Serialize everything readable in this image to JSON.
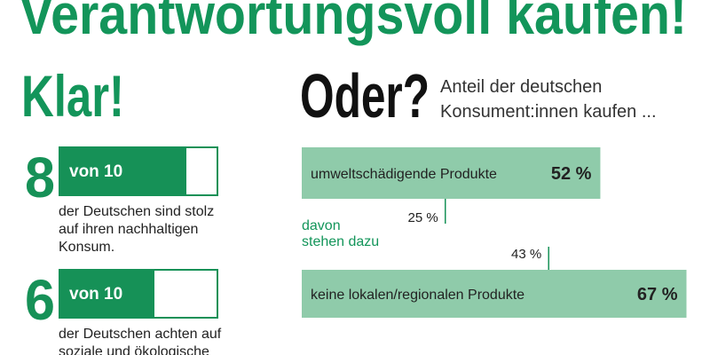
{
  "title": "Verantwortungsvoll kaufen!",
  "left": {
    "heading": "Klar!",
    "max": 10,
    "max_label": "von 10",
    "items": [
      {
        "value": 8,
        "text": [
          "der Deutschen sind stolz",
          "auf ihren nachhaltigen",
          "Konsum."
        ]
      },
      {
        "value": 6,
        "text": [
          "der Deutschen achten auf",
          "soziale und ökologische"
        ]
      }
    ]
  },
  "right": {
    "heading": "Oder?",
    "subtitle": [
      "Anteil der deutschen",
      "Konsument:innen kaufen ..."
    ],
    "note": [
      "davon",
      "stehen dazu"
    ],
    "xlim": [
      0,
      100
    ],
    "bars": [
      {
        "label": "umweltschädigende Produkte",
        "value": 52,
        "value_label": "52 %",
        "admit": 25,
        "admit_label": "25 %"
      },
      {
        "label": "keine lokalen/regionalen Produkte",
        "value": 67,
        "value_label": "67 %",
        "admit": 43,
        "admit_label": "43 %"
      }
    ]
  }
}
